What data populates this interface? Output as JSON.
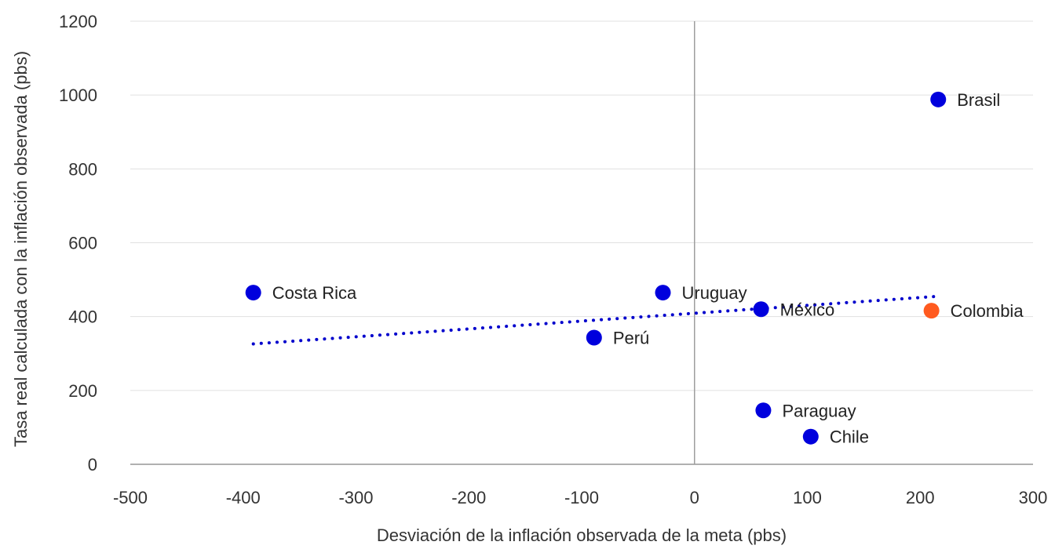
{
  "chart_data": {
    "type": "scatter",
    "title": "",
    "xlabel": "Desviación de la inflación observada de la meta (pbs)",
    "ylabel": "Tasa real calculada con la inflación observada (pbs)",
    "xlim": [
      -500,
      300
    ],
    "ylim": [
      0,
      1200
    ],
    "xticks": [
      -500,
      -400,
      -300,
      -200,
      -100,
      0,
      100,
      200,
      300
    ],
    "yticks": [
      0,
      200,
      400,
      600,
      800,
      1000,
      1200
    ],
    "grid": "horizontal",
    "legend": "none",
    "points": [
      {
        "label": "Brasil",
        "x": 216,
        "y": 988,
        "color": "#0000dd"
      },
      {
        "label": "Costa Rica",
        "x": -391,
        "y": 465,
        "color": "#0000dd"
      },
      {
        "label": "Uruguay",
        "x": -28,
        "y": 465,
        "color": "#0000dd"
      },
      {
        "label": "México",
        "x": 59,
        "y": 420,
        "color": "#0000dd"
      },
      {
        "label": "Colombia",
        "x": 210,
        "y": 416,
        "color": "#ff5a1f"
      },
      {
        "label": "Perú",
        "x": -89,
        "y": 343,
        "color": "#0000dd"
      },
      {
        "label": "Paraguay",
        "x": 61,
        "y": 146,
        "color": "#0000dd"
      },
      {
        "label": "Chile",
        "x": 103,
        "y": 75,
        "color": "#0000dd"
      }
    ],
    "trendline": {
      "style": "dotted",
      "color": "#0000cc",
      "x": [
        -391,
        216
      ],
      "y": [
        326,
        455
      ]
    }
  }
}
